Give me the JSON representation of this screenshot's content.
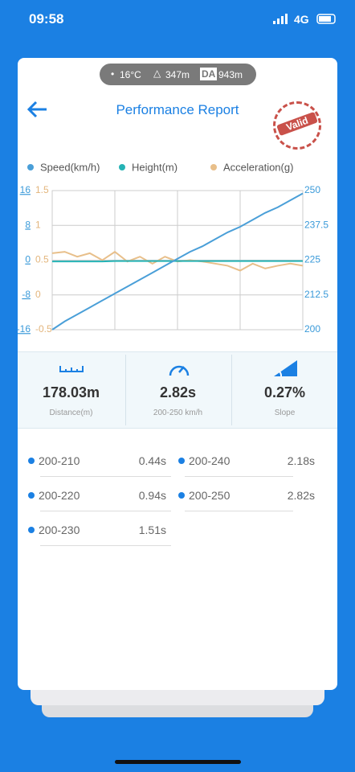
{
  "status_bar": {
    "time": "09:58",
    "network": "4G"
  },
  "conditions": {
    "temperature": "16°C",
    "altitude": "347m",
    "da_badge": "DA",
    "density_altitude": "943m"
  },
  "header": {
    "title": "Performance Report",
    "stamp": "Valid"
  },
  "chart_data": {
    "type": "line",
    "grid": true,
    "series": [
      {
        "name": "Speed(km/h)",
        "color": "#4a9fd8",
        "axis": "y2",
        "values": [
          200,
          203,
          205.5,
          208,
          210.5,
          213,
          215.5,
          218,
          220.5,
          223,
          225.5,
          228,
          230,
          232.5,
          235,
          237,
          239.5,
          242,
          244,
          246.5,
          249
        ]
      },
      {
        "name": "Height(m)",
        "color": "#25b3b5",
        "values": [
          -0.3,
          -0.3,
          -0.3,
          -0.3,
          -0.3,
          -0.2,
          -0.2,
          -0.2,
          -0.2,
          -0.2,
          -0.2,
          -0.2,
          -0.2,
          -0.2,
          -0.2,
          -0.2,
          -0.2,
          -0.2,
          -0.2,
          -0.2,
          -0.2
        ]
      },
      {
        "name": "Acceleration(g)",
        "color": "#e8bf8a",
        "axis": "y3",
        "values": [
          0.6,
          0.62,
          0.55,
          0.6,
          0.5,
          0.62,
          0.48,
          0.55,
          0.45,
          0.55,
          0.48,
          0.5,
          0.48,
          0.45,
          0.42,
          0.35,
          0.45,
          0.38,
          0.42,
          0.45,
          0.42
        ]
      }
    ],
    "ylim": [
      -16,
      16
    ],
    "yticks": [
      16,
      8,
      0,
      -8,
      -16
    ],
    "y3lim": [
      -0.5,
      1.5
    ],
    "y3ticks": [
      1.5,
      1,
      0.5,
      0,
      -0.5
    ],
    "y2lim": [
      200,
      250
    ],
    "y2ticks": [
      250,
      237.5,
      225,
      212.5,
      200
    ]
  },
  "stats": [
    {
      "value": "178.03m",
      "label": "Distance(m)"
    },
    {
      "value": "2.82s",
      "label": "200-250 km/h"
    },
    {
      "value": "0.27%",
      "label": "Slope"
    }
  ],
  "splits": [
    {
      "range": "200-210",
      "time": "0.44s"
    },
    {
      "range": "200-240",
      "time": "2.18s"
    },
    {
      "range": "200-220",
      "time": "0.94s"
    },
    {
      "range": "200-250",
      "time": "2.82s"
    },
    {
      "range": "200-230",
      "time": "1.51s"
    }
  ]
}
